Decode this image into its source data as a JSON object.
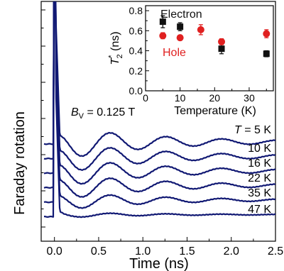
{
  "chart_data": [
    {
      "type": "line",
      "xlabel": "Time (ns)",
      "ylabel": "Faraday rotation",
      "xlim": [
        -0.15,
        2.5
      ],
      "xticks": [
        0.0,
        0.5,
        1.0,
        1.5,
        2.0,
        2.5
      ],
      "xtick_labels": [
        "0.0",
        "0.5",
        "1.0",
        "1.5",
        "2.0",
        "2.5"
      ],
      "y_units": "arbitrary (offset traces)",
      "annotation": {
        "prefix": "B",
        "subscript": "V",
        "rest": " = 0.125 T"
      },
      "series": [
        {
          "name": "T = 5 K",
          "prefix": "T",
          "label": " = 5 K",
          "offset": 0,
          "amp": 1.0
        },
        {
          "name": "10 K",
          "label": "10 K",
          "offset": 1,
          "amp": 0.95
        },
        {
          "name": "16 K",
          "label": "16 K",
          "offset": 2,
          "amp": 0.9
        },
        {
          "name": "22 K",
          "label": "22 K",
          "offset": 3,
          "amp": 0.8
        },
        {
          "name": "35 K",
          "label": "35 K",
          "offset": 4,
          "amp": 0.55
        },
        {
          "name": "47 K",
          "label": "47 K",
          "offset": 5,
          "amp": 0.15
        }
      ],
      "colors": {
        "trace": "#101873",
        "axis": "#000000",
        "text": "#000000"
      }
    },
    {
      "type": "scatter",
      "xlabel": "Temperature (K)",
      "ylabel_main": "T",
      "ylabel_sup": "*",
      "ylabel_sub": "2",
      "ylabel_rest": " (ns)",
      "xlim": [
        0,
        37
      ],
      "ylim": [
        0.0,
        0.85
      ],
      "xticks": [
        0,
        10,
        20,
        30
      ],
      "yticks": [
        0.0,
        0.2,
        0.4,
        0.6,
        0.8
      ],
      "xtick_labels": [
        "0",
        "10",
        "20",
        "30"
      ],
      "ytick_labels": [
        "0.0",
        "0.2",
        "0.4",
        "0.6",
        "0.8"
      ],
      "series": [
        {
          "name": "Electron",
          "marker": "square",
          "color": "#111111",
          "points": [
            {
              "x": 5,
              "y": 0.69,
              "err": 0.06
            },
            {
              "x": 10,
              "y": 0.64,
              "err": 0.04
            },
            {
              "x": 22,
              "y": 0.42,
              "err": 0.05
            },
            {
              "x": 35,
              "y": 0.37,
              "err": 0.03
            }
          ]
        },
        {
          "name": "Hole",
          "marker": "circle",
          "color": "#e02020",
          "points": [
            {
              "x": 5,
              "y": 0.55,
              "err": 0.03
            },
            {
              "x": 10,
              "y": 0.53,
              "err": 0.02
            },
            {
              "x": 16,
              "y": 0.61,
              "err": 0.05
            },
            {
              "x": 22,
              "y": 0.49,
              "err": 0.03
            },
            {
              "x": 35,
              "y": 0.57,
              "err": 0.04
            }
          ]
        }
      ]
    }
  ]
}
